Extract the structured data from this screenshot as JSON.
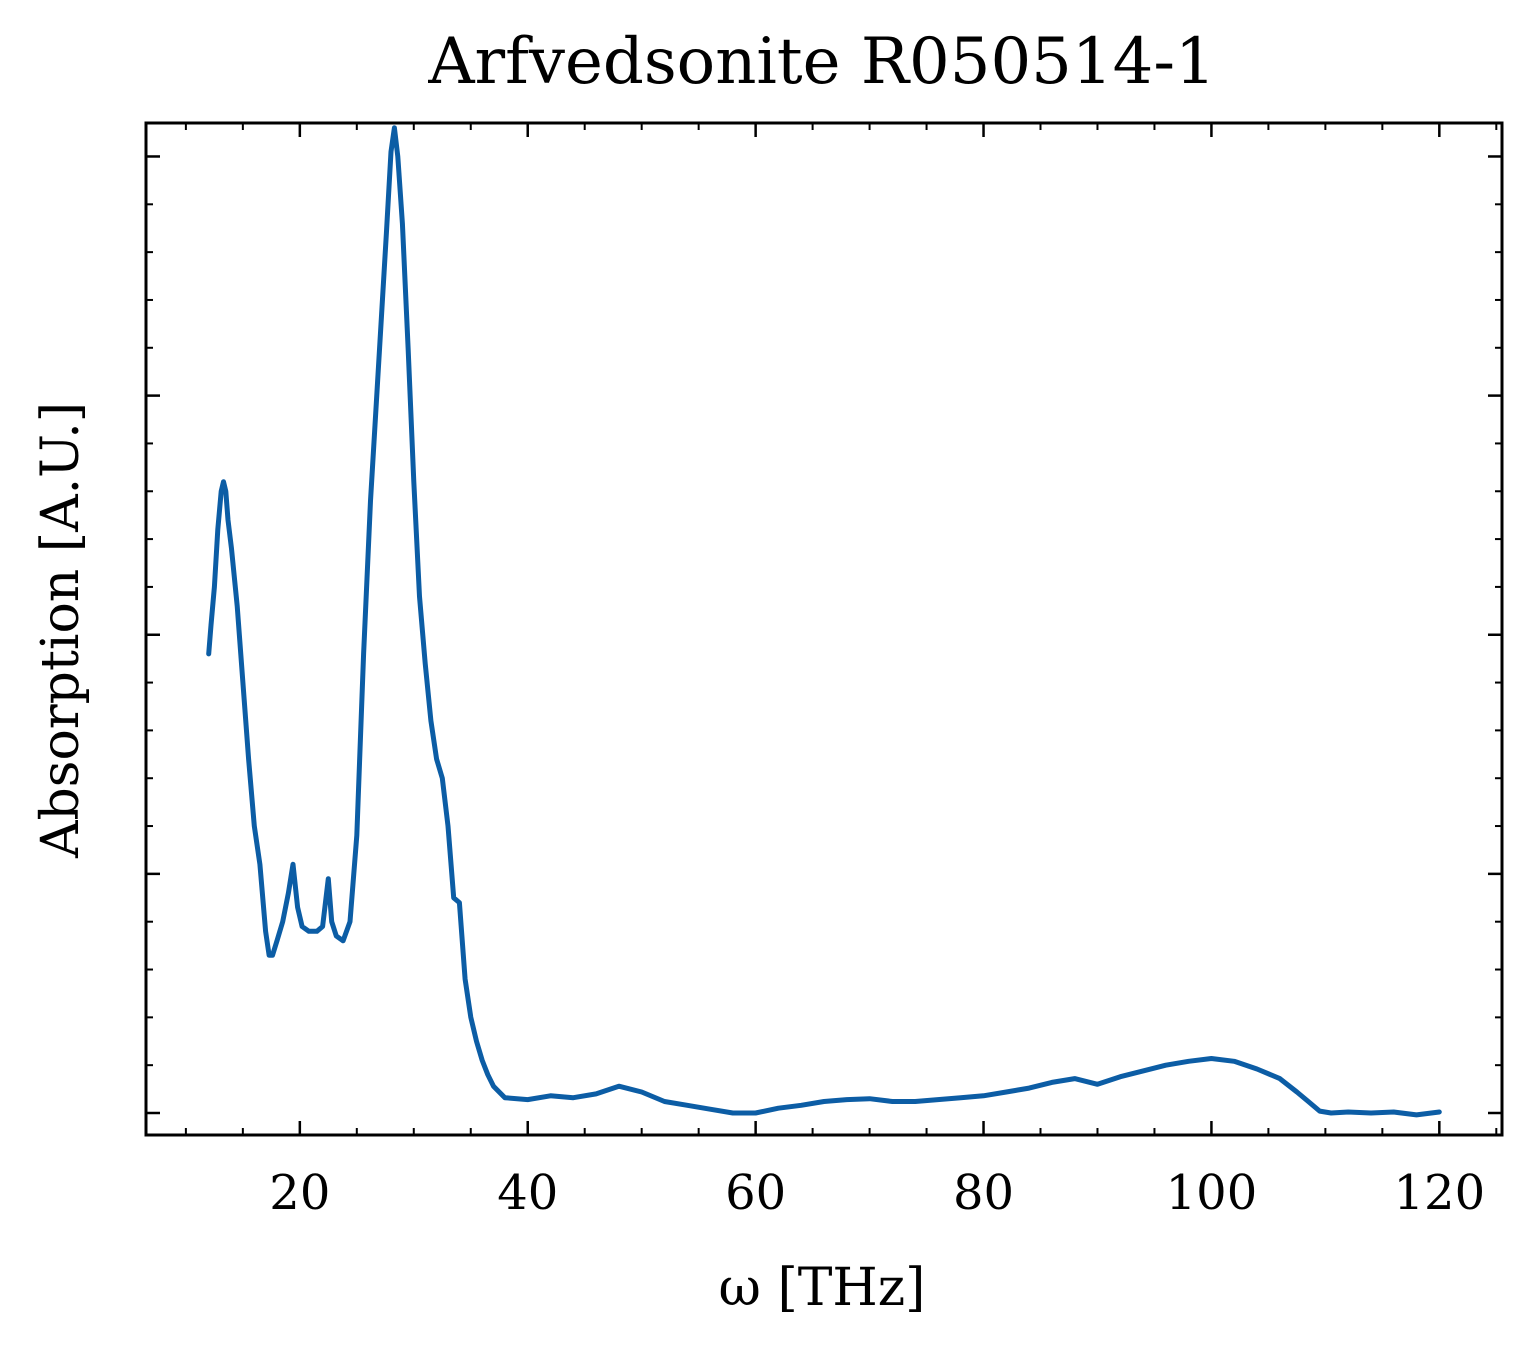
{
  "chart_data": {
    "type": "line",
    "title": "Arfvedsonite R050514-1",
    "xlabel": "ω [THz]",
    "ylabel": "Absorption [A.U.]",
    "xlim": [
      6.5,
      125.5
    ],
    "ylim": [
      -0.023,
      1.035
    ],
    "xticks": [
      20,
      40,
      60,
      80,
      100,
      120
    ],
    "x_minor_step": 5,
    "yticks": [
      0.0,
      0.25,
      0.5,
      0.75,
      1.0
    ],
    "y_minor_step": 0.05,
    "show_ytick_labels": false,
    "grid": false,
    "color": "#0C5DA5",
    "series": [
      {
        "x": [
          12.0,
          12.2,
          12.5,
          12.8,
          13.1,
          13.3,
          13.5,
          13.7,
          14.0,
          14.5,
          15.0,
          15.5,
          16.0,
          16.5,
          17.0,
          17.3,
          17.6,
          18.0,
          18.5,
          19.0,
          19.4,
          19.8,
          20.2,
          20.8,
          21.5,
          22.0,
          22.5,
          22.8,
          23.2,
          23.8,
          24.4,
          25.0,
          25.6,
          26.2,
          27.0,
          27.6,
          28.0,
          28.3,
          28.6,
          29.0,
          29.5,
          30.0,
          30.5,
          31.0,
          31.5,
          32.0,
          32.5,
          33.0,
          33.5,
          34.0,
          34.5,
          35.0,
          35.5,
          36.0,
          36.5,
          37.0,
          38.0,
          40.0,
          42.0,
          44.0,
          46.0,
          48.0,
          50.0,
          52.0,
          54.0,
          56.0,
          58.0,
          60.0,
          62.0,
          64.0,
          66.0,
          68.0,
          70.0,
          72.0,
          74.0,
          76.0,
          78.0,
          80.0,
          82.0,
          84.0,
          86.0,
          88.0,
          90.0,
          92.0,
          94.0,
          96.0,
          98.0,
          100.0,
          102.0,
          104.0,
          106.0,
          107.5,
          108.5,
          109.5,
          110.5,
          112.0,
          114.0,
          116.0,
          118.0,
          120.0
        ],
        "y": [
          0.48,
          0.51,
          0.55,
          0.61,
          0.65,
          0.66,
          0.65,
          0.62,
          0.59,
          0.53,
          0.45,
          0.37,
          0.3,
          0.26,
          0.19,
          0.165,
          0.165,
          0.18,
          0.2,
          0.23,
          0.26,
          0.215,
          0.195,
          0.19,
          0.19,
          0.195,
          0.245,
          0.2,
          0.185,
          0.18,
          0.2,
          0.29,
          0.48,
          0.64,
          0.8,
          0.92,
          1.005,
          1.03,
          1.0,
          0.93,
          0.8,
          0.66,
          0.54,
          0.47,
          0.41,
          0.37,
          0.35,
          0.3,
          0.225,
          0.22,
          0.14,
          0.1,
          0.075,
          0.055,
          0.04,
          0.028,
          0.016,
          0.014,
          0.018,
          0.016,
          0.02,
          0.028,
          0.022,
          0.012,
          0.008,
          0.004,
          0.0,
          0.0,
          0.005,
          0.008,
          0.012,
          0.014,
          0.015,
          0.012,
          0.012,
          0.014,
          0.016,
          0.018,
          0.022,
          0.026,
          0.032,
          0.036,
          0.03,
          0.038,
          0.044,
          0.05,
          0.054,
          0.057,
          0.054,
          0.046,
          0.036,
          0.022,
          0.012,
          0.002,
          0.0,
          0.001,
          0.0,
          0.001,
          -0.002,
          0.001
        ]
      }
    ]
  }
}
